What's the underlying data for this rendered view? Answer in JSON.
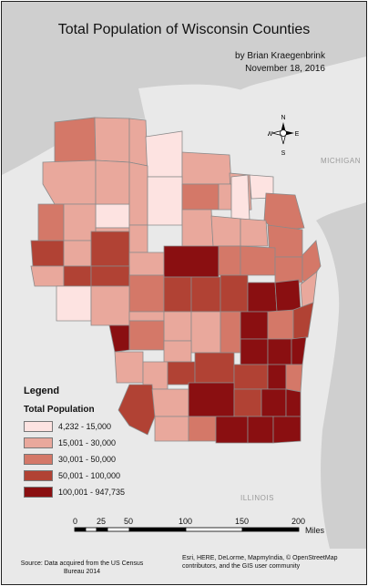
{
  "map": {
    "title": "Total Population of Wisconsin Counties",
    "author": "by Brian Kraegenbrink",
    "date": "November 18, 2016",
    "basemap_labels": [
      "ILLINOIS",
      "MICHIGAN"
    ],
    "colors": {
      "class1": "#fde3e1",
      "class2": "#e9a89c",
      "class3": "#d47868",
      "class4": "#b14234",
      "class5": "#8a0f11",
      "land": "#e9e9e9",
      "water": "#cfcfcf"
    }
  },
  "legend": {
    "title": "Legend",
    "subtitle": "Total Population",
    "classes": [
      {
        "label": "4,232 - 15,000",
        "color": "#fde3e1"
      },
      {
        "label": "15,001 - 30,000",
        "color": "#e9a89c"
      },
      {
        "label": "30,001 - 50,000",
        "color": "#d47868"
      },
      {
        "label": "50,001 - 100,000",
        "color": "#b14234"
      },
      {
        "label": "100,001 - 947,735",
        "color": "#8a0f11"
      }
    ]
  },
  "compass": {
    "n": "N",
    "s": "S",
    "e": "E",
    "w": "W"
  },
  "scale_bar": {
    "ticks": [
      "0",
      "25",
      "50",
      "100",
      "150",
      "200"
    ],
    "unit": "Miles"
  },
  "source_note": "Source: Data acquired from the US Census Bureau 2014",
  "attribution": "Esri, HERE, DeLorme, MapmyIndia, © OpenStreetMap contributors, and the GIS user community"
}
